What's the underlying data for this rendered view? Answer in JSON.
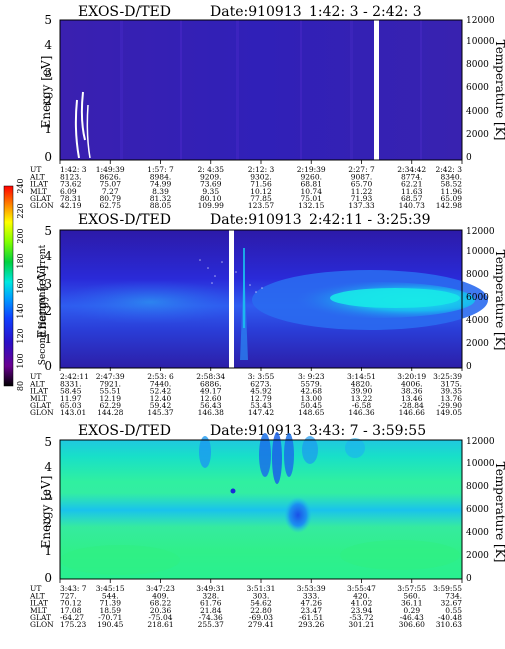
{
  "colorbar": {
    "label": "Second Harmonic Current",
    "ticks": [
      "80",
      "100",
      "120",
      "140",
      "160",
      "180",
      "200",
      "220",
      "240"
    ]
  },
  "row_labels": [
    "UT",
    "ALT",
    "ILAT",
    "MLT",
    "GLAT",
    "GLON"
  ],
  "chart_data": [
    {
      "type": "heatmap",
      "title": "EXOS-D/TED",
      "date": "Date:910913",
      "time_range": "1:42: 3 - 2:42: 3",
      "ylabel": "Energy [eV]",
      "y2label": "Temperature [K]",
      "ylim": [
        0,
        5
      ],
      "y2lim": [
        0,
        12000
      ],
      "yticks": [
        "0",
        "1",
        "2",
        "3",
        "4",
        "5"
      ],
      "y2ticks": [
        "0",
        "2000",
        "4000",
        "6000",
        "8000",
        "10000",
        "12000"
      ],
      "columns": [
        [
          "1:42: 3",
          "8123.",
          "73.62",
          "6.09",
          "78.31",
          "42.19"
        ],
        [
          "1:49:39",
          "8626.",
          "75.07",
          "7.27",
          "80.79",
          "62.75"
        ],
        [
          "1:57: 7",
          "8984.",
          "74.99",
          "8.39",
          "81.32",
          "88.05"
        ],
        [
          "2: 4:35",
          "9209.",
          "73.69",
          "9.35",
          "80.10",
          "109.99"
        ],
        [
          "2:12: 3",
          "9302.",
          "71.56",
          "10.12",
          "77.85",
          "123.57"
        ],
        [
          "2:19:39",
          "9260.",
          "68.81",
          "10.74",
          "75.01",
          "132.15"
        ],
        [
          "2:27: 7",
          "9087.",
          "65.70",
          "11.22",
          "71.93",
          "137.33"
        ],
        [
          "2:34:42",
          "8774.",
          "62.21",
          "11.63",
          "68.57",
          "140.73"
        ],
        [
          "2:42: 3",
          "8340.",
          "58.52",
          "11.96",
          "65.09",
          "142.98"
        ]
      ]
    },
    {
      "type": "heatmap",
      "title": "EXOS-D/TED",
      "date": "Date:910913",
      "time_range": "2:42:11 - 3:25:39",
      "ylabel": "Energy [eV]",
      "y2label": "Temperature [K]",
      "ylim": [
        0,
        5
      ],
      "y2lim": [
        0,
        12000
      ],
      "yticks": [
        "0",
        "1",
        "2",
        "3",
        "4",
        "5"
      ],
      "y2ticks": [
        "0",
        "2000",
        "4000",
        "6000",
        "8000",
        "10000",
        "12000"
      ],
      "columns": [
        [
          "2:42:11",
          "8331.",
          "58.45",
          "11.97",
          "65.03",
          "143.01"
        ],
        [
          "2:47:39",
          "7921.",
          "55.51",
          "12.19",
          "62.29",
          "144.28"
        ],
        [
          "2:53: 6",
          "7440.",
          "52.42",
          "12.40",
          "59.42",
          "145.37"
        ],
        [
          "2:58:34",
          "6886.",
          "49.17",
          "12.60",
          "56.43",
          "146.38"
        ],
        [
          "3: 3:55",
          "6273.",
          "45.92",
          "12.79",
          "53.43",
          "147.42"
        ],
        [
          "3: 9:23",
          "5579.",
          "42.68",
          "13.00",
          "50.45",
          "148.65"
        ],
        [
          "3:14:51",
          "4820.",
          "39.90",
          "13.22",
          "-6.58",
          "146.36"
        ],
        [
          "3:20:19",
          "4006.",
          "38.36",
          "13.46",
          "-28.84",
          "146.66"
        ],
        [
          "3:25:39",
          "3175.",
          "39.35",
          "13.76",
          "-29.90",
          "149.05"
        ]
      ]
    },
    {
      "type": "heatmap",
      "title": "EXOS-D/TED",
      "date": "Date:910913",
      "time_range": "3:43: 7 - 3:59:55",
      "ylabel": "Energy [eV]",
      "y2label": "Temperature [K]",
      "ylim": [
        0,
        5
      ],
      "y2lim": [
        0,
        12000
      ],
      "yticks": [
        "0",
        "1",
        "2",
        "3",
        "4",
        "5"
      ],
      "y2ticks": [
        "0",
        "2000",
        "4000",
        "6000",
        "8000",
        "10000",
        "12000"
      ],
      "columns": [
        [
          "3:43: 7",
          "727.",
          "70.12",
          "17.08",
          "-64.27",
          "175.23"
        ],
        [
          "3:45:15",
          "544.",
          "71.39",
          "18.59",
          "-70.71",
          "190.45"
        ],
        [
          "3:47:23",
          "409.",
          "68.22",
          "20.36",
          "-75.04",
          "218.61"
        ],
        [
          "3:49:31",
          "328.",
          "61.76",
          "21.84",
          "-74.36",
          "255.37"
        ],
        [
          "3:51:31",
          "303.",
          "54.62",
          "22.80",
          "-69.03",
          "279.41"
        ],
        [
          "3:53:39",
          "333.",
          "47.26",
          "23.47",
          "-61.51",
          "293.26"
        ],
        [
          "3:55:47",
          "420.",
          "41.02",
          "23.94",
          "-53.72",
          "301.21"
        ],
        [
          "3:57:55",
          "560.",
          "36.11",
          "0.29",
          "-46.43",
          "306.60"
        ],
        [
          "3:59:55",
          "734.",
          "32.67",
          "0.55",
          "-40.48",
          "310.63"
        ]
      ]
    }
  ]
}
